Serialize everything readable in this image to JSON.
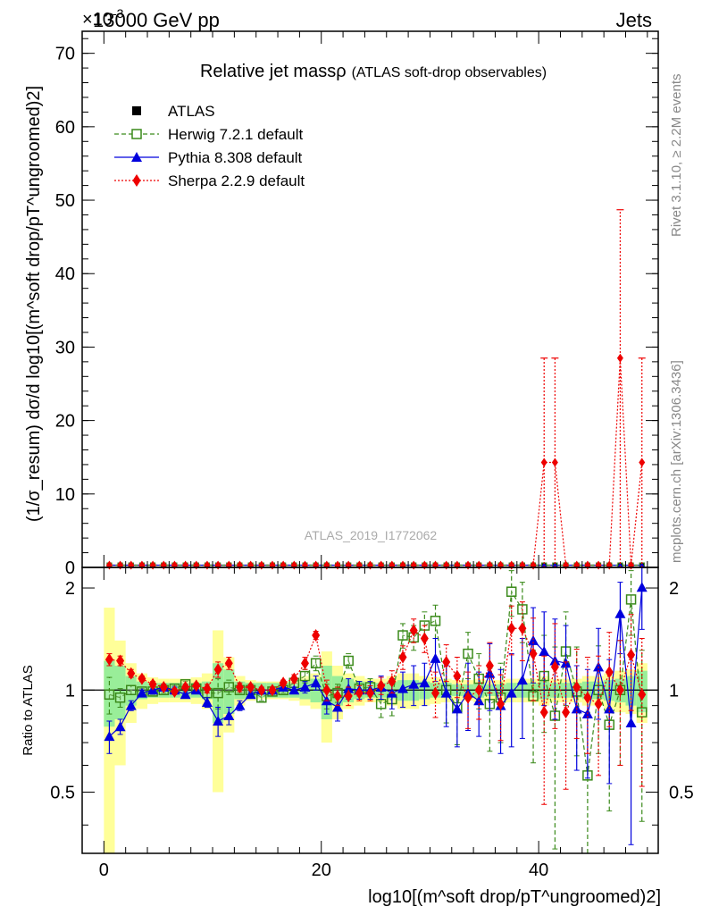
{
  "header": {
    "beam": "13000 GeV pp",
    "process": "Jets",
    "exponent": "×10",
    "exponent_power": "-3"
  },
  "side_labels": {
    "rivet": "Rivet 3.1.10, ≥ 2.2M events",
    "mcplots": "mcplots.cern.ch [arXiv:1306.3436]"
  },
  "watermark": "ATLAS_2019_I1772062",
  "chart_data": {
    "type": "scatter",
    "title_main": "Relative jet massρ",
    "title_sub": "(ATLAS soft-drop observables)",
    "ylabel": "(1/σ_resum) dσ/d log10[(m^soft drop/pT^ungroomed)2]",
    "xlabel": "log10[(m^soft drop/pT^ungroomed)2]",
    "ratio_ylabel": "Ratio to ATLAS",
    "xlim": [
      -2,
      51
    ],
    "ylim": [
      0,
      73
    ],
    "ratio_ylim": [
      0.33,
      2.3
    ],
    "x_ticks": [
      0,
      20,
      40
    ],
    "y_ticks": [
      0,
      10,
      20,
      30,
      40,
      50,
      60,
      70
    ],
    "ratio_ticks": [
      0.5,
      1,
      2
    ],
    "legend_position": "top-left",
    "legend": [
      {
        "name": "ATLAS",
        "color": "#000000",
        "marker": "square-filled",
        "line": "none"
      },
      {
        "name": "Herwig 7.2.1 default",
        "color": "#3a8a1a",
        "marker": "square-open",
        "line": "dashed"
      },
      {
        "name": "Pythia 8.308 default",
        "color": "#0000dd",
        "marker": "triangle",
        "line": "solid"
      },
      {
        "name": "Sherpa 2.2.9 default",
        "color": "#ee0000",
        "marker": "diamond",
        "line": "dotted"
      }
    ],
    "x": [
      0.5,
      1.5,
      2.5,
      3.5,
      4.5,
      5.5,
      6.5,
      7.5,
      8.5,
      9.5,
      10.5,
      11.5,
      12.5,
      13.5,
      14.5,
      15.5,
      16.5,
      17.5,
      18.5,
      19.5,
      20.5,
      21.5,
      22.5,
      23.5,
      24.5,
      25.5,
      26.5,
      27.5,
      28.5,
      29.5,
      30.5,
      31.5,
      32.5,
      33.5,
      34.5,
      35.5,
      36.5,
      37.5,
      38.5,
      39.5,
      40.5,
      41.5,
      42.5,
      43.5,
      44.5,
      45.5,
      46.5,
      47.5,
      48.5,
      49.5
    ],
    "atlas_band_inner": [
      0.22,
      0.18,
      0.1,
      0.06,
      0.05,
      0.05,
      0.05,
      0.05,
      0.05,
      0.06,
      0.2,
      0.15,
      0.06,
      0.05,
      0.05,
      0.05,
      0.05,
      0.05,
      0.06,
      0.08,
      0.18,
      0.1,
      0.08,
      0.06,
      0.05,
      0.05,
      0.06,
      0.07,
      0.07,
      0.06,
      0.05,
      0.05,
      0.04,
      0.04,
      0.05,
      0.04,
      0.04,
      0.05,
      0.05,
      0.05,
      0.06,
      0.05,
      0.05,
      0.05,
      0.06,
      0.06,
      0.07,
      0.08,
      0.1,
      0.14
    ],
    "atlas_band_outer": [
      0.75,
      0.4,
      0.2,
      0.12,
      0.09,
      0.08,
      0.08,
      0.08,
      0.09,
      0.12,
      0.5,
      0.25,
      0.1,
      0.07,
      0.06,
      0.06,
      0.06,
      0.07,
      0.1,
      0.12,
      0.3,
      0.18,
      0.12,
      0.1,
      0.08,
      0.08,
      0.1,
      0.12,
      0.12,
      0.1,
      0.09,
      0.08,
      0.07,
      0.07,
      0.08,
      0.07,
      0.07,
      0.08,
      0.08,
      0.08,
      0.1,
      0.08,
      0.08,
      0.08,
      0.1,
      0.1,
      0.12,
      0.14,
      0.15,
      0.2
    ],
    "main_series": {
      "sherpa_peaks": [
        {
          "x": 40.5,
          "y": 14.3,
          "err_up": 14.2
        },
        {
          "x": 41.5,
          "y": 14.3,
          "err_up": 14.2
        },
        {
          "x": 47.5,
          "y": 28.5,
          "err_up": 20.2
        },
        {
          "x": 49.5,
          "y": 14.3,
          "err_up": 14.2
        }
      ],
      "baseline": 0.3
    },
    "ratio_series": [
      {
        "name": "Herwig 7.2.1 default",
        "values": [
          0.97,
          0.95,
          1.0,
          0.99,
          0.99,
          1.0,
          1.01,
          1.04,
          1.01,
          0.98,
          0.98,
          1.02,
          1.0,
          1.0,
          0.95,
          0.99,
          1.0,
          1.05,
          1.1,
          1.2,
          0.96,
          0.98,
          1.22,
          1.01,
          1.02,
          0.91,
          0.94,
          1.45,
          1.43,
          1.55,
          1.6,
          1.0,
          0.89,
          1.28,
          1.08,
          0.91,
          0.95,
          1.95,
          1.73,
          0.96,
          1.1,
          0.84,
          1.3,
          0.99,
          0.56,
          1.0,
          0.79,
          1.0,
          1.85,
          0.86
        ],
        "errors": [
          0.12,
          0.06,
          0.03,
          0.02,
          0.02,
          0.02,
          0.02,
          0.02,
          0.02,
          0.03,
          0.1,
          0.05,
          0.02,
          0.02,
          0.02,
          0.02,
          0.02,
          0.03,
          0.05,
          0.06,
          0.08,
          0.06,
          0.06,
          0.05,
          0.06,
          0.08,
          0.1,
          0.12,
          0.12,
          0.15,
          0.18,
          0.2,
          0.2,
          0.2,
          0.2,
          0.25,
          0.25,
          0.3,
          0.35,
          0.35,
          0.35,
          0.5,
          0.4,
          0.35,
          0.3,
          0.35,
          0.35,
          0.4,
          0.4,
          0.45
        ]
      },
      {
        "name": "Pythia 8.308 default",
        "values": [
          0.73,
          0.78,
          0.9,
          0.98,
          1.0,
          1.02,
          1.0,
          0.97,
          1.0,
          0.92,
          0.81,
          0.84,
          0.9,
          0.97,
          1.0,
          1.0,
          1.02,
          1.0,
          1.02,
          1.05,
          0.93,
          0.89,
          1.01,
          1.0,
          1.0,
          1.02,
          0.98,
          1.01,
          1.04,
          1.05,
          1.24,
          0.98,
          0.88,
          0.98,
          0.93,
          1.12,
          0.9,
          0.98,
          1.07,
          1.4,
          1.3,
          1.22,
          1.2,
          0.88,
          0.85,
          1.17,
          0.88,
          1.68,
          0.8,
          2.01
        ],
        "errors": [
          0.08,
          0.04,
          0.03,
          0.02,
          0.02,
          0.02,
          0.02,
          0.02,
          0.02,
          0.03,
          0.08,
          0.05,
          0.03,
          0.02,
          0.02,
          0.02,
          0.02,
          0.02,
          0.04,
          0.05,
          0.08,
          0.08,
          0.07,
          0.06,
          0.06,
          0.08,
          0.1,
          0.12,
          0.14,
          0.15,
          0.18,
          0.2,
          0.2,
          0.22,
          0.2,
          0.25,
          0.25,
          0.3,
          0.35,
          0.35,
          0.4,
          0.4,
          0.35,
          0.3,
          0.3,
          0.35,
          0.35,
          0.4,
          0.45,
          0.5
        ]
      },
      {
        "name": "Sherpa 2.2.9 default",
        "values": [
          1.23,
          1.22,
          1.12,
          1.08,
          1.04,
          1.02,
          0.99,
          1.02,
          1.03,
          1.01,
          1.15,
          1.2,
          1.02,
          1.02,
          1.0,
          1.0,
          1.05,
          1.08,
          1.2,
          1.45,
          1.0,
          0.96,
          0.96,
          0.98,
          0.98,
          1.03,
          1.06,
          1.25,
          1.5,
          1.42,
          0.98,
          1.21,
          1.1,
          0.95,
          1.0,
          1.18,
          0.91,
          1.52,
          1.52,
          1.28,
          0.86,
          1.17,
          0.86,
          1.02,
          0.95,
          0.91,
          1.13,
          1.0,
          1.27,
          0.97
        ],
        "errors": [
          0.05,
          0.04,
          0.03,
          0.02,
          0.02,
          0.02,
          0.02,
          0.02,
          0.02,
          0.03,
          0.06,
          0.05,
          0.03,
          0.02,
          0.02,
          0.02,
          0.02,
          0.03,
          0.05,
          0.04,
          0.07,
          0.06,
          0.06,
          0.05,
          0.05,
          0.06,
          0.08,
          0.1,
          0.12,
          0.13,
          0.15,
          0.15,
          0.15,
          0.18,
          0.18,
          0.2,
          0.2,
          0.25,
          0.3,
          0.35,
          0.4,
          0.4,
          0.35,
          0.3,
          0.3,
          0.35,
          0.35,
          0.4,
          0.4,
          0.45
        ]
      }
    ]
  }
}
